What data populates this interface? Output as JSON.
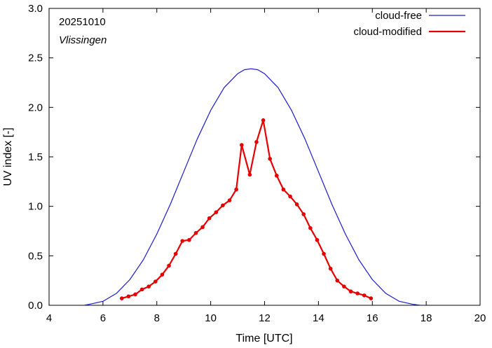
{
  "chart_data": {
    "type": "line",
    "xlabel": "Time  [UTC]",
    "ylabel": "UV index  [-]",
    "xlim": [
      4,
      20
    ],
    "ylim": [
      0,
      3.0
    ],
    "xticks": [
      4,
      6,
      8,
      10,
      12,
      14,
      16,
      18,
      20
    ],
    "yticks": [
      0.0,
      0.5,
      1.0,
      1.5,
      2.0,
      2.5,
      3.0
    ],
    "xtick_labels": [
      "4",
      "6",
      "8",
      "10",
      "12",
      "14",
      "16",
      "18",
      "20"
    ],
    "ytick_labels": [
      "0.0",
      "0.5",
      "1.0",
      "1.5",
      "2.0",
      "2.5",
      "3.0"
    ],
    "grid": false,
    "legend_position": "top-right",
    "annotations": {
      "date": "20251010",
      "location": "Vlissingen"
    },
    "series": [
      {
        "name": "cloud-free",
        "color": "#1a1acc",
        "markers": false,
        "x": [
          5.3,
          5.5,
          6.0,
          6.5,
          7.0,
          7.5,
          8.0,
          8.5,
          9.0,
          9.5,
          10.0,
          10.5,
          11.0,
          11.25,
          11.5,
          11.75,
          12.0,
          12.5,
          13.0,
          13.5,
          14.0,
          14.5,
          15.0,
          15.5,
          16.0,
          16.5,
          17.0,
          17.5,
          17.8
        ],
        "y": [
          0.0,
          0.01,
          0.04,
          0.12,
          0.26,
          0.46,
          0.72,
          1.02,
          1.35,
          1.68,
          1.97,
          2.2,
          2.34,
          2.38,
          2.39,
          2.38,
          2.34,
          2.2,
          1.97,
          1.68,
          1.35,
          1.02,
          0.72,
          0.46,
          0.26,
          0.12,
          0.04,
          0.01,
          0.0
        ]
      },
      {
        "name": "cloud-modified",
        "color": "#e60000",
        "markers": true,
        "x": [
          6.7,
          6.95,
          7.2,
          7.45,
          7.7,
          7.95,
          8.2,
          8.45,
          8.7,
          8.95,
          9.2,
          9.45,
          9.7,
          9.95,
          10.2,
          10.45,
          10.7,
          10.95,
          11.15,
          11.45,
          11.7,
          11.95,
          12.2,
          12.45,
          12.7,
          12.95,
          13.2,
          13.45,
          13.7,
          13.95,
          14.2,
          14.45,
          14.7,
          14.95,
          15.2,
          15.45,
          15.7,
          15.95
        ],
        "y": [
          0.07,
          0.09,
          0.11,
          0.16,
          0.19,
          0.24,
          0.31,
          0.4,
          0.52,
          0.65,
          0.66,
          0.73,
          0.79,
          0.88,
          0.94,
          1.01,
          1.06,
          1.17,
          1.62,
          1.32,
          1.65,
          1.87,
          1.48,
          1.31,
          1.17,
          1.1,
          1.02,
          0.92,
          0.78,
          0.66,
          0.52,
          0.37,
          0.25,
          0.19,
          0.14,
          0.12,
          0.1,
          0.07
        ]
      }
    ]
  }
}
